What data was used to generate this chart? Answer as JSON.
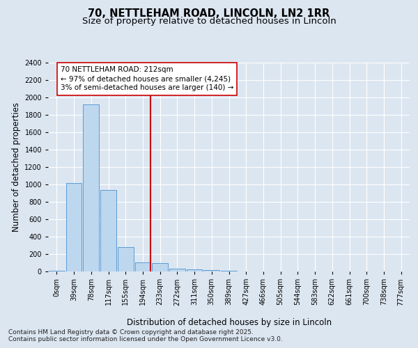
{
  "title": "70, NETTLEHAM ROAD, LINCOLN, LN2 1RR",
  "subtitle": "Size of property relative to detached houses in Lincoln",
  "xlabel": "Distribution of detached houses by size in Lincoln",
  "ylabel": "Number of detached properties",
  "bins": [
    "0sqm",
    "39sqm",
    "78sqm",
    "117sqm",
    "155sqm",
    "194sqm",
    "233sqm",
    "272sqm",
    "311sqm",
    "350sqm",
    "389sqm",
    "427sqm",
    "466sqm",
    "505sqm",
    "544sqm",
    "583sqm",
    "622sqm",
    "661sqm",
    "700sqm",
    "738sqm",
    "777sqm"
  ],
  "values": [
    5,
    1020,
    1920,
    940,
    280,
    105,
    100,
    35,
    25,
    18,
    5,
    0,
    0,
    0,
    0,
    0,
    0,
    0,
    0,
    0,
    0
  ],
  "bar_color": "#bdd7ee",
  "bar_edge_color": "#5b9bd5",
  "vline_x": 5.46,
  "vline_color": "#cc0000",
  "annotation_line1": "70 NETTLEHAM ROAD: 212sqm",
  "annotation_line2": "← 97% of detached houses are smaller (4,245)",
  "annotation_line3": "3% of semi-detached houses are larger (140) →",
  "annotation_box_color": "#ffffff",
  "annotation_box_edge": "#cc0000",
  "ylim": [
    0,
    2400
  ],
  "yticks": [
    0,
    200,
    400,
    600,
    800,
    1000,
    1200,
    1400,
    1600,
    1800,
    2000,
    2200,
    2400
  ],
  "bg_color": "#dce6f1",
  "plot_bg_color": "#dce6f1",
  "footer_line1": "Contains HM Land Registry data © Crown copyright and database right 2025.",
  "footer_line2": "Contains public sector information licensed under the Open Government Licence v3.0.",
  "title_fontsize": 10.5,
  "subtitle_fontsize": 9.5,
  "axis_label_fontsize": 8.5,
  "tick_fontsize": 7,
  "annotation_fontsize": 7.5,
  "footer_fontsize": 6.5
}
